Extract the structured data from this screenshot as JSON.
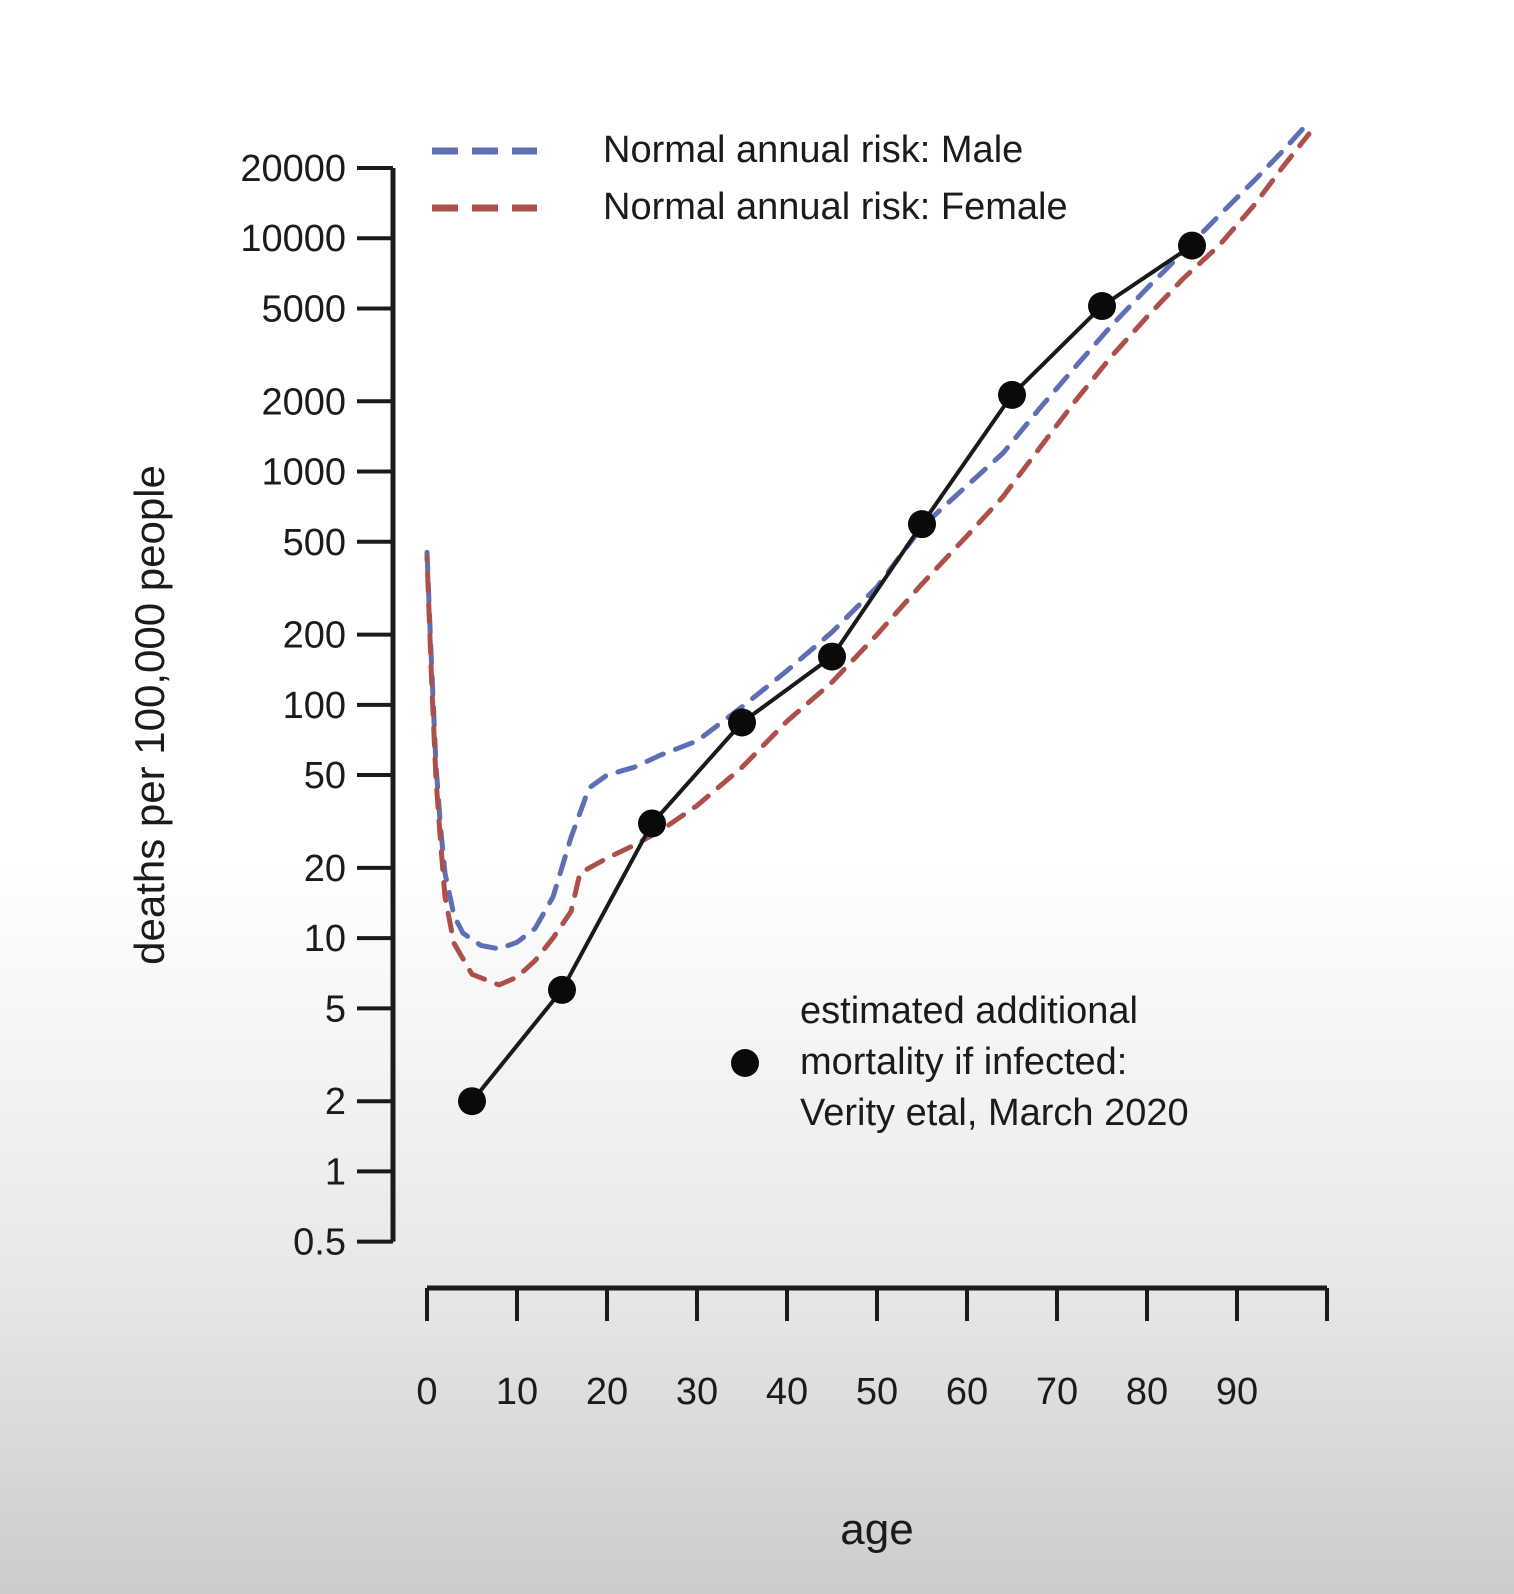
{
  "figure": {
    "background_top": "#ffffff",
    "background_bottom": "#cccccc",
    "axis_color": "#1b1b1b",
    "text_color": "#1b1b1b"
  },
  "chart_data": {
    "type": "line",
    "title": "",
    "xlabel": "age",
    "ylabel": "deaths per 100,000 people",
    "x_axis": {
      "min": 0,
      "max": 100,
      "ticks": [
        0,
        10,
        20,
        30,
        40,
        50,
        60,
        70,
        80,
        90,
        100
      ],
      "tick_labels": [
        "0",
        "10",
        "20",
        "30",
        "40",
        "50",
        "60",
        "70",
        "80",
        "90",
        ""
      ]
    },
    "y_axis": {
      "scale": "log",
      "min": 0.5,
      "max": 20000,
      "tick_labels": [
        "20000",
        "10000",
        "5000",
        "2000",
        "1000",
        "500",
        "200",
        "100",
        "50",
        "20",
        "10",
        "5",
        "2",
        "1",
        "0.5"
      ]
    },
    "grid": false,
    "legend_position": "top-left-inside",
    "series": [
      {
        "id": "male",
        "label": "Normal annual risk: Male",
        "color": "#5e6fb3",
        "line_style": "dashed",
        "markers": false,
        "points": [
          [
            0,
            450
          ],
          [
            0.5,
            150
          ],
          [
            1,
            55
          ],
          [
            1.5,
            30
          ],
          [
            2,
            19
          ],
          [
            3,
            12.5
          ],
          [
            4,
            10.5
          ],
          [
            6,
            9.3
          ],
          [
            8,
            9
          ],
          [
            10,
            9.6
          ],
          [
            12,
            11
          ],
          [
            14,
            15
          ],
          [
            16,
            27
          ],
          [
            18,
            44
          ],
          [
            20,
            50
          ],
          [
            23,
            54
          ],
          [
            26,
            61
          ],
          [
            30,
            70
          ],
          [
            35,
            98
          ],
          [
            40,
            140
          ],
          [
            45,
            205
          ],
          [
            50,
            320
          ],
          [
            55,
            580
          ],
          [
            60,
            870
          ],
          [
            64,
            1200
          ],
          [
            68,
            1850
          ],
          [
            72,
            2800
          ],
          [
            76,
            4200
          ],
          [
            80,
            6100
          ],
          [
            84,
            8700
          ],
          [
            88,
            12500
          ],
          [
            92,
            17800
          ],
          [
            95,
            23500
          ],
          [
            98,
            31500
          ]
        ]
      },
      {
        "id": "female",
        "label": "Normal annual risk: Female",
        "color": "#ad5049",
        "line_style": "dashed",
        "markers": false,
        "points": [
          [
            0,
            430
          ],
          [
            0.5,
            130
          ],
          [
            1,
            48
          ],
          [
            1.5,
            26
          ],
          [
            2,
            15
          ],
          [
            3,
            9.5
          ],
          [
            5,
            7
          ],
          [
            8,
            6.3
          ],
          [
            10,
            6.8
          ],
          [
            12,
            8
          ],
          [
            14,
            10
          ],
          [
            16,
            13
          ],
          [
            17,
            19
          ],
          [
            20,
            22
          ],
          [
            23,
            25
          ],
          [
            26,
            29
          ],
          [
            30,
            37
          ],
          [
            35,
            54
          ],
          [
            40,
            85
          ],
          [
            45,
            125
          ],
          [
            50,
            200
          ],
          [
            55,
            330
          ],
          [
            60,
            530
          ],
          [
            64,
            780
          ],
          [
            68,
            1250
          ],
          [
            72,
            2000
          ],
          [
            76,
            3100
          ],
          [
            80,
            4600
          ],
          [
            84,
            6700
          ],
          [
            88,
            9300
          ],
          [
            92,
            14000
          ],
          [
            95,
            20000
          ],
          [
            98,
            28000
          ]
        ]
      },
      {
        "id": "infected",
        "label": "estimated additional mortality if infected: Verity etal, March 2020",
        "color": "#1a1a1a",
        "line_style": "solid",
        "markers": true,
        "marker_color": "#0a0a0a",
        "points": [
          [
            5,
            2
          ],
          [
            15,
            6
          ],
          [
            25,
            31
          ],
          [
            35,
            84
          ],
          [
            45,
            161
          ],
          [
            55,
            595
          ],
          [
            65,
            2130
          ],
          [
            75,
            5120
          ],
          [
            85,
            9300
          ]
        ]
      }
    ],
    "annotation": {
      "marker": "filled-circle",
      "lines": [
        "estimated additional",
        "mortality if infected:",
        "Verity etal, March 2020"
      ]
    }
  }
}
